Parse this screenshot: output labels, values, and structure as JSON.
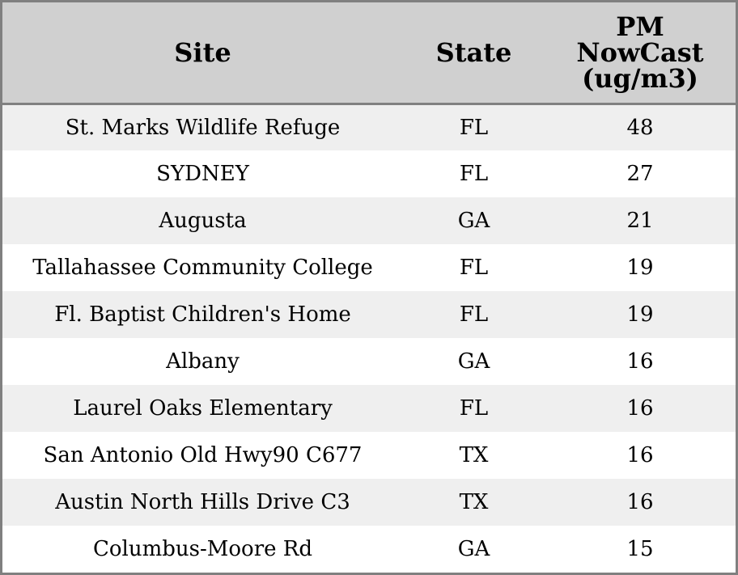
{
  "chart_data": {
    "type": "table",
    "columns": [
      "Site",
      "State",
      "PM NowCast (ug/m3)"
    ],
    "header_lines": {
      "site": "Site",
      "state": "State",
      "pm": [
        "PM",
        "NowCast",
        "(ug/m3)"
      ]
    },
    "rows": [
      {
        "site": "St. Marks Wildlife Refuge",
        "state": "FL",
        "pm": "48"
      },
      {
        "site": "SYDNEY",
        "state": "FL",
        "pm": "27"
      },
      {
        "site": "Augusta",
        "state": "GA",
        "pm": "21"
      },
      {
        "site": "Tallahassee Community College",
        "state": "FL",
        "pm": "19"
      },
      {
        "site": "Fl. Baptist Children's Home",
        "state": "FL",
        "pm": "19"
      },
      {
        "site": "Albany",
        "state": "GA",
        "pm": "16"
      },
      {
        "site": "Laurel Oaks Elementary",
        "state": "FL",
        "pm": "16"
      },
      {
        "site": "San Antonio Old Hwy90 C677",
        "state": "TX",
        "pm": "16"
      },
      {
        "site": "Austin North Hills Drive C3",
        "state": "TX",
        "pm": "16"
      },
      {
        "site": "Columbus-Moore Rd",
        "state": "GA",
        "pm": "15"
      }
    ]
  },
  "colors": {
    "header_background": "#d0d0d0",
    "row_shaded": "#efefef",
    "row_plain": "#ffffff",
    "border": "#808080"
  }
}
